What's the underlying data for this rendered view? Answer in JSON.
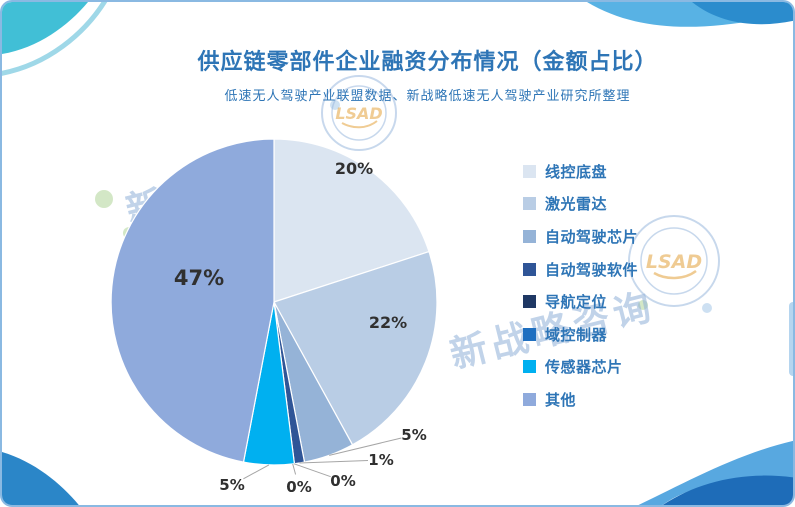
{
  "title": "供应链零部件企业融资分布情况（金额占比）",
  "subtitle": "低速无人驾驶产业联盟数据、新战略低速无人驾驶产业研究所整理",
  "watermark": {
    "text": "新战略咨询",
    "badge": "LSAD"
  },
  "colors": {
    "accent": "#2e75b6",
    "label_text": "#303030",
    "leader_line": "#a6a6a6",
    "card_border": "#8ab9e2"
  },
  "chart_data": {
    "type": "pie",
    "title": "供应链零部件企业融资分布情况（金额占比）",
    "subtitle": "低速无人驾驶产业联盟数据、新战略低速无人驾驶产业研究所整理",
    "categories": [
      "线控底盘",
      "激光雷达",
      "自动驾驶芯片",
      "自动驾驶软件",
      "导航定位",
      "域控制器",
      "传感器芯片",
      "其他"
    ],
    "values": [
      20,
      22,
      5,
      1,
      0,
      0,
      5,
      47
    ],
    "labels": [
      "20%",
      "22%",
      "5%",
      "1%",
      "0%",
      "0%",
      "5%",
      "47%"
    ],
    "colors": [
      "#dbe5f1",
      "#b9cde5",
      "#95b3d7",
      "#2f5597",
      "#1f3864",
      "#1f6fc0",
      "#00b0f0",
      "#8faadc"
    ],
    "legend_position": "right",
    "start_angle_deg": 0,
    "direction": "clockwise"
  }
}
